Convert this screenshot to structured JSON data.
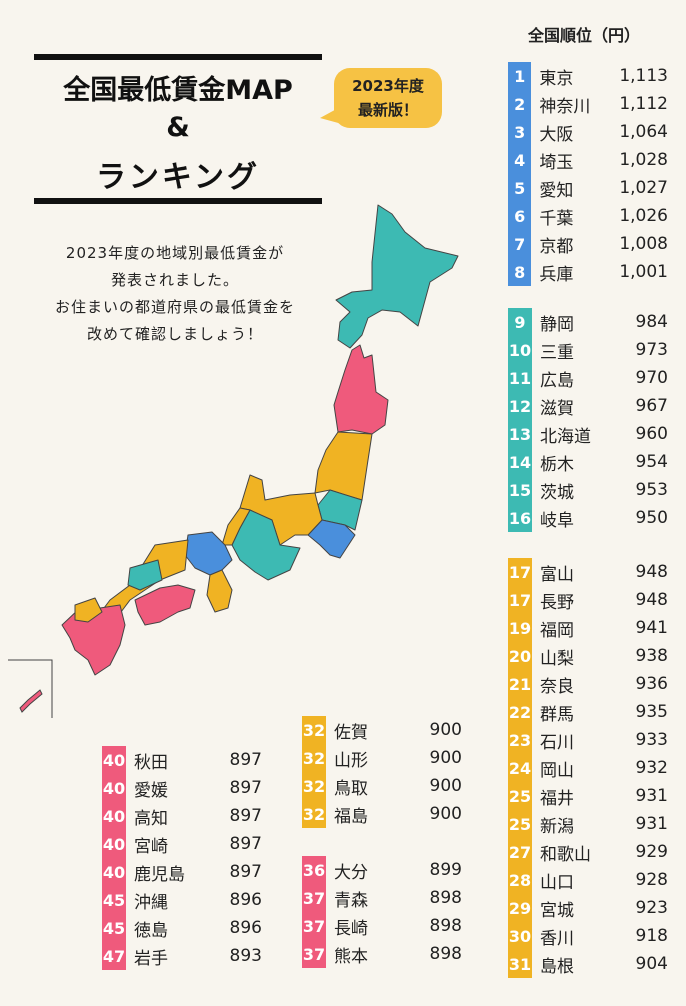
{
  "title": {
    "line1": "全国最低賃金MAP",
    "line2": "&",
    "line3": "ランキング"
  },
  "badge": {
    "line1": "2023年度",
    "line2": "最新版！"
  },
  "intro": [
    "2023年度の地域別最低賃金が",
    "発表されました。",
    "お住まいの都道府県の最低賃金を",
    "改めて確認しましょう！"
  ],
  "ranking_header": "全国順位（円）",
  "colors": {
    "blue": "#4a8fdc",
    "teal": "#3dbab3",
    "yellow": "#f0b323",
    "pink": "#ef5a7c",
    "background": "#f8f5ee"
  },
  "groups": {
    "blue": [
      {
        "rank": "1",
        "name": "東京",
        "wage": "1,113"
      },
      {
        "rank": "2",
        "name": "神奈川",
        "wage": "1,112"
      },
      {
        "rank": "3",
        "name": "大阪",
        "wage": "1,064"
      },
      {
        "rank": "4",
        "name": "埼玉",
        "wage": "1,028"
      },
      {
        "rank": "5",
        "name": "愛知",
        "wage": "1,027"
      },
      {
        "rank": "6",
        "name": "千葉",
        "wage": "1,026"
      },
      {
        "rank": "7",
        "name": "京都",
        "wage": "1,008"
      },
      {
        "rank": "8",
        "name": "兵庫",
        "wage": "1,001"
      }
    ],
    "teal": [
      {
        "rank": "9",
        "name": "静岡",
        "wage": "984"
      },
      {
        "rank": "10",
        "name": "三重",
        "wage": "973"
      },
      {
        "rank": "11",
        "name": "広島",
        "wage": "970"
      },
      {
        "rank": "12",
        "name": "滋賀",
        "wage": "967"
      },
      {
        "rank": "13",
        "name": "北海道",
        "wage": "960"
      },
      {
        "rank": "14",
        "name": "栃木",
        "wage": "954"
      },
      {
        "rank": "15",
        "name": "茨城",
        "wage": "953"
      },
      {
        "rank": "16",
        "name": "岐阜",
        "wage": "950"
      }
    ],
    "yellow": [
      {
        "rank": "17",
        "name": "富山",
        "wage": "948"
      },
      {
        "rank": "17",
        "name": "長野",
        "wage": "948"
      },
      {
        "rank": "19",
        "name": "福岡",
        "wage": "941"
      },
      {
        "rank": "20",
        "name": "山梨",
        "wage": "938"
      },
      {
        "rank": "21",
        "name": "奈良",
        "wage": "936"
      },
      {
        "rank": "22",
        "name": "群馬",
        "wage": "935"
      },
      {
        "rank": "23",
        "name": "石川",
        "wage": "933"
      },
      {
        "rank": "24",
        "name": "岡山",
        "wage": "932"
      },
      {
        "rank": "25",
        "name": "福井",
        "wage": "931"
      },
      {
        "rank": "25",
        "name": "新潟",
        "wage": "931"
      },
      {
        "rank": "27",
        "name": "和歌山",
        "wage": "929"
      },
      {
        "rank": "28",
        "name": "山口",
        "wage": "928"
      },
      {
        "rank": "29",
        "name": "宮城",
        "wage": "923"
      },
      {
        "rank": "30",
        "name": "香川",
        "wage": "918"
      },
      {
        "rank": "31",
        "name": "島根",
        "wage": "904"
      }
    ],
    "yellow2": [
      {
        "rank": "32",
        "name": "佐賀",
        "wage": "900"
      },
      {
        "rank": "32",
        "name": "山形",
        "wage": "900"
      },
      {
        "rank": "32",
        "name": "鳥取",
        "wage": "900"
      },
      {
        "rank": "32",
        "name": "福島",
        "wage": "900"
      }
    ],
    "pink_mid": [
      {
        "rank": "36",
        "name": "大分",
        "wage": "899"
      },
      {
        "rank": "37",
        "name": "青森",
        "wage": "898"
      },
      {
        "rank": "37",
        "name": "長崎",
        "wage": "898"
      },
      {
        "rank": "37",
        "name": "熊本",
        "wage": "898"
      }
    ],
    "pink_left": [
      {
        "rank": "40",
        "name": "秋田",
        "wage": "897"
      },
      {
        "rank": "40",
        "name": "愛媛",
        "wage": "897"
      },
      {
        "rank": "40",
        "name": "高知",
        "wage": "897"
      },
      {
        "rank": "40",
        "name": "宮崎",
        "wage": "897"
      },
      {
        "rank": "40",
        "name": "鹿児島",
        "wage": "897"
      },
      {
        "rank": "45",
        "name": "沖縄",
        "wage": "896"
      },
      {
        "rank": "45",
        "name": "徳島",
        "wage": "896"
      },
      {
        "rank": "47",
        "name": "岩手",
        "wage": "893"
      }
    ]
  }
}
